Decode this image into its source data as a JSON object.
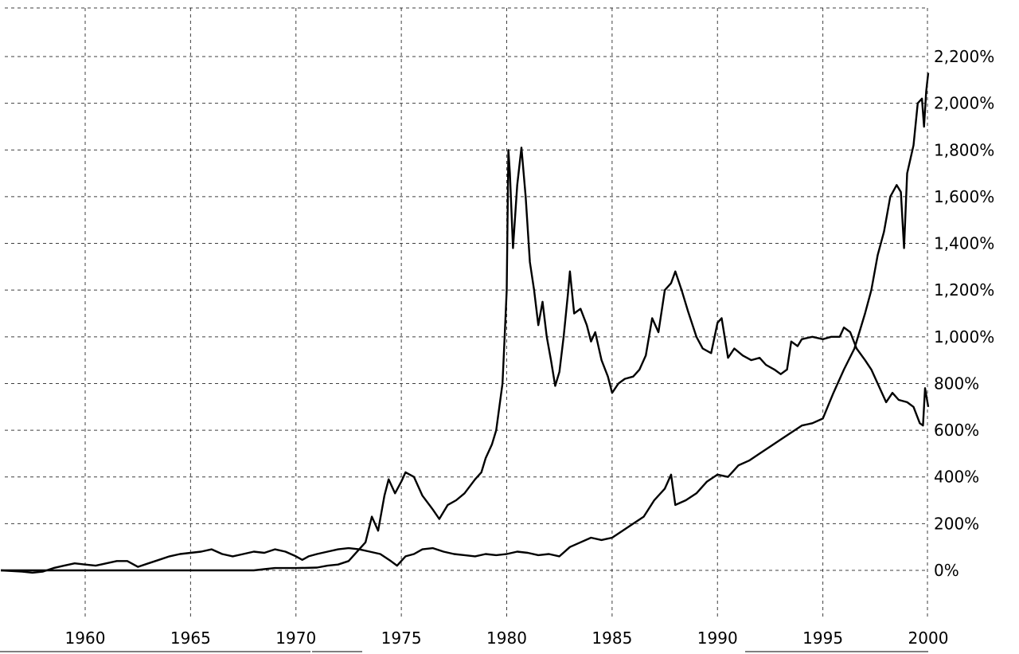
{
  "chart_data": {
    "type": "line",
    "title": "",
    "xlabel": "",
    "ylabel": "",
    "x_axis": {
      "ticks": [
        "1960",
        "1965",
        "1970",
        "1975",
        "1980",
        "1985",
        "1990",
        "1995",
        "2000"
      ],
      "range": [
        1956,
        2000
      ]
    },
    "y_axis": {
      "ticks": [
        "0%",
        "200%",
        "400%",
        "600%",
        "800%",
        "1,000%",
        "1,200%",
        "1,400%",
        "1,600%",
        "1,800%",
        "2,000%",
        "2,200%"
      ],
      "range": [
        -50,
        2400
      ],
      "position": "right"
    },
    "grid": true,
    "legend": "none",
    "series": [
      {
        "color": "#000000",
        "points": [
          [
            1956.0,
            0
          ],
          [
            1957.0,
            0
          ],
          [
            1958.0,
            0
          ],
          [
            1959.0,
            0
          ],
          [
            1960.0,
            0
          ],
          [
            1961.0,
            0
          ],
          [
            1962.0,
            0
          ],
          [
            1963.0,
            0
          ],
          [
            1964.0,
            0
          ],
          [
            1965.0,
            0
          ],
          [
            1966.0,
            0
          ],
          [
            1967.0,
            0
          ],
          [
            1968.0,
            0
          ],
          [
            1968.5,
            5
          ],
          [
            1969.0,
            10
          ],
          [
            1970.0,
            10
          ],
          [
            1971.0,
            12
          ],
          [
            1971.5,
            20
          ],
          [
            1972.0,
            25
          ],
          [
            1972.5,
            40
          ],
          [
            1973.0,
            90
          ],
          [
            1973.3,
            120
          ],
          [
            1973.6,
            230
          ],
          [
            1973.9,
            170
          ],
          [
            1974.2,
            320
          ],
          [
            1974.4,
            390
          ],
          [
            1974.7,
            330
          ],
          [
            1975.0,
            380
          ],
          [
            1975.2,
            420
          ],
          [
            1975.6,
            400
          ],
          [
            1976.0,
            320
          ],
          [
            1976.5,
            260
          ],
          [
            1976.8,
            220
          ],
          [
            1977.2,
            280
          ],
          [
            1977.6,
            300
          ],
          [
            1978.0,
            330
          ],
          [
            1978.5,
            390
          ],
          [
            1978.8,
            420
          ],
          [
            1979.0,
            480
          ],
          [
            1979.3,
            540
          ],
          [
            1979.5,
            600
          ],
          [
            1979.8,
            800
          ],
          [
            1979.9,
            1000
          ],
          [
            1980.0,
            1200
          ],
          [
            1980.08,
            1800
          ],
          [
            1980.15,
            1700
          ],
          [
            1980.3,
            1380
          ],
          [
            1980.5,
            1650
          ],
          [
            1980.7,
            1810
          ],
          [
            1980.9,
            1600
          ],
          [
            1981.1,
            1320
          ],
          [
            1981.3,
            1200
          ],
          [
            1981.5,
            1050
          ],
          [
            1981.7,
            1150
          ],
          [
            1981.9,
            1000
          ],
          [
            1982.1,
            900
          ],
          [
            1982.3,
            790
          ],
          [
            1982.5,
            850
          ],
          [
            1982.7,
            1000
          ],
          [
            1982.9,
            1180
          ],
          [
            1983.0,
            1280
          ],
          [
            1983.2,
            1100
          ],
          [
            1983.5,
            1120
          ],
          [
            1983.8,
            1050
          ],
          [
            1984.0,
            980
          ],
          [
            1984.2,
            1020
          ],
          [
            1984.5,
            900
          ],
          [
            1984.8,
            830
          ],
          [
            1985.0,
            760
          ],
          [
            1985.3,
            800
          ],
          [
            1985.6,
            820
          ],
          [
            1986.0,
            830
          ],
          [
            1986.3,
            860
          ],
          [
            1986.6,
            920
          ],
          [
            1986.9,
            1080
          ],
          [
            1987.2,
            1020
          ],
          [
            1987.5,
            1200
          ],
          [
            1987.8,
            1230
          ],
          [
            1988.0,
            1280
          ],
          [
            1988.3,
            1200
          ],
          [
            1988.6,
            1110
          ],
          [
            1989.0,
            1000
          ],
          [
            1989.3,
            950
          ],
          [
            1989.7,
            930
          ],
          [
            1990.0,
            1060
          ],
          [
            1990.2,
            1080
          ],
          [
            1990.5,
            910
          ],
          [
            1990.8,
            950
          ],
          [
            1991.2,
            920
          ],
          [
            1991.6,
            900
          ],
          [
            1992.0,
            910
          ],
          [
            1992.3,
            880
          ],
          [
            1992.7,
            860
          ],
          [
            1993.0,
            840
          ],
          [
            1993.3,
            860
          ],
          [
            1993.5,
            980
          ],
          [
            1993.8,
            960
          ],
          [
            1994.0,
            990
          ],
          [
            1994.5,
            1000
          ],
          [
            1995.0,
            990
          ],
          [
            1995.4,
            1000
          ],
          [
            1995.8,
            1000
          ],
          [
            1996.0,
            1040
          ],
          [
            1996.3,
            1020
          ],
          [
            1996.6,
            950
          ],
          [
            1997.0,
            900
          ],
          [
            1997.3,
            860
          ],
          [
            1997.6,
            800
          ],
          [
            1998.0,
            720
          ],
          [
            1998.3,
            760
          ],
          [
            1998.6,
            730
          ],
          [
            1999.0,
            720
          ],
          [
            1999.3,
            700
          ],
          [
            1999.6,
            630
          ],
          [
            1999.75,
            620
          ],
          [
            1999.85,
            780
          ],
          [
            2000.0,
            700
          ]
        ]
      },
      {
        "color": "#000000",
        "points": [
          [
            1956.0,
            0
          ],
          [
            1957.0,
            -5
          ],
          [
            1957.5,
            -10
          ],
          [
            1958.0,
            -5
          ],
          [
            1958.5,
            10
          ],
          [
            1959.0,
            20
          ],
          [
            1959.5,
            30
          ],
          [
            1960.0,
            25
          ],
          [
            1960.5,
            20
          ],
          [
            1961.0,
            30
          ],
          [
            1961.5,
            40
          ],
          [
            1962.0,
            40
          ],
          [
            1962.5,
            15
          ],
          [
            1963.0,
            30
          ],
          [
            1963.5,
            45
          ],
          [
            1964.0,
            60
          ],
          [
            1964.5,
            70
          ],
          [
            1965.0,
            75
          ],
          [
            1965.5,
            80
          ],
          [
            1966.0,
            90
          ],
          [
            1966.5,
            70
          ],
          [
            1967.0,
            60
          ],
          [
            1967.5,
            70
          ],
          [
            1968.0,
            80
          ],
          [
            1968.5,
            75
          ],
          [
            1969.0,
            90
          ],
          [
            1969.5,
            80
          ],
          [
            1970.0,
            60
          ],
          [
            1970.3,
            45
          ],
          [
            1970.6,
            60
          ],
          [
            1971.0,
            70
          ],
          [
            1971.5,
            80
          ],
          [
            1972.0,
            90
          ],
          [
            1972.5,
            95
          ],
          [
            1973.0,
            90
          ],
          [
            1973.5,
            80
          ],
          [
            1974.0,
            70
          ],
          [
            1974.5,
            40
          ],
          [
            1974.8,
            20
          ],
          [
            1975.2,
            60
          ],
          [
            1975.6,
            70
          ],
          [
            1976.0,
            90
          ],
          [
            1976.5,
            95
          ],
          [
            1977.0,
            80
          ],
          [
            1977.5,
            70
          ],
          [
            1978.0,
            65
          ],
          [
            1978.5,
            60
          ],
          [
            1979.0,
            70
          ],
          [
            1979.5,
            65
          ],
          [
            1980.0,
            70
          ],
          [
            1980.5,
            80
          ],
          [
            1981.0,
            75
          ],
          [
            1981.5,
            65
          ],
          [
            1982.0,
            70
          ],
          [
            1982.5,
            60
          ],
          [
            1983.0,
            100
          ],
          [
            1983.5,
            120
          ],
          [
            1984.0,
            140
          ],
          [
            1984.5,
            130
          ],
          [
            1985.0,
            140
          ],
          [
            1985.5,
            170
          ],
          [
            1986.0,
            200
          ],
          [
            1986.5,
            230
          ],
          [
            1987.0,
            300
          ],
          [
            1987.5,
            350
          ],
          [
            1987.8,
            410
          ],
          [
            1988.0,
            280
          ],
          [
            1988.5,
            300
          ],
          [
            1989.0,
            330
          ],
          [
            1989.5,
            380
          ],
          [
            1990.0,
            410
          ],
          [
            1990.5,
            400
          ],
          [
            1991.0,
            450
          ],
          [
            1991.5,
            470
          ],
          [
            1992.0,
            500
          ],
          [
            1992.5,
            530
          ],
          [
            1993.0,
            560
          ],
          [
            1993.5,
            590
          ],
          [
            1994.0,
            620
          ],
          [
            1994.5,
            630
          ],
          [
            1995.0,
            650
          ],
          [
            1995.5,
            760
          ],
          [
            1996.0,
            860
          ],
          [
            1996.5,
            950
          ],
          [
            1997.0,
            1100
          ],
          [
            1997.3,
            1200
          ],
          [
            1997.6,
            1350
          ],
          [
            1997.9,
            1450
          ],
          [
            1998.2,
            1600
          ],
          [
            1998.5,
            1650
          ],
          [
            1998.7,
            1620
          ],
          [
            1998.85,
            1380
          ],
          [
            1999.0,
            1700
          ],
          [
            1999.3,
            1820
          ],
          [
            1999.5,
            2000
          ],
          [
            1999.7,
            2020
          ],
          [
            1999.8,
            1900
          ],
          [
            1999.9,
            2050
          ],
          [
            2000.0,
            2130
          ]
        ]
      }
    ]
  }
}
